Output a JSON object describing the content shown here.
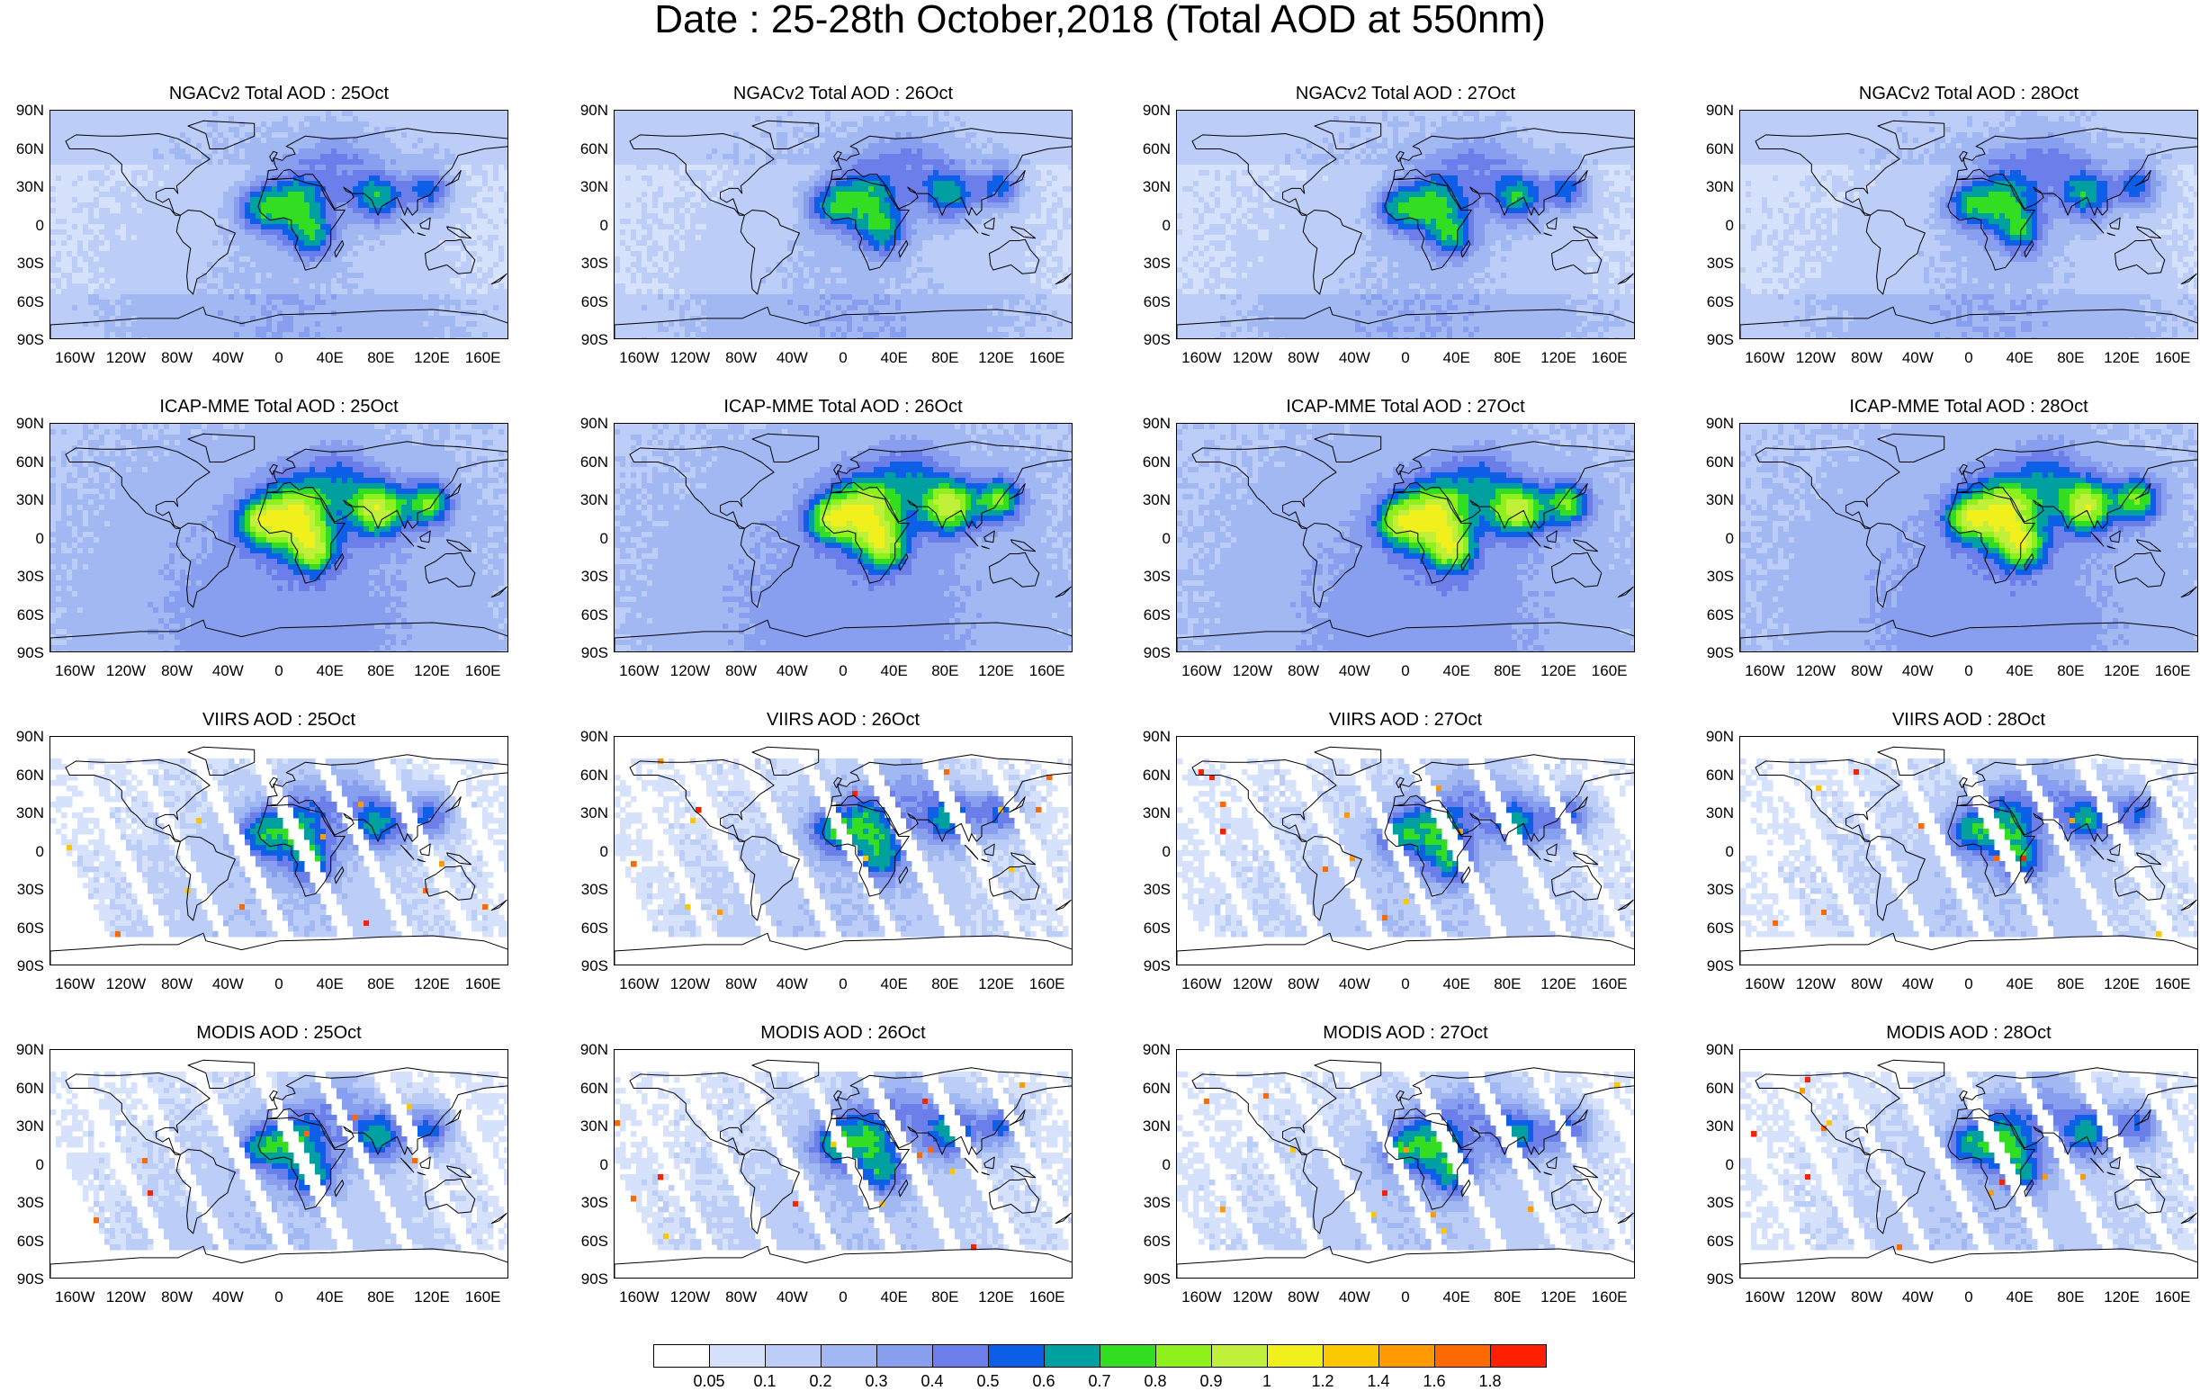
{
  "title": "Date : 25-28th October,2018 (Total AOD at 550nm)",
  "lat_ticks": [
    "90N",
    "60N",
    "30N",
    "0",
    "30S",
    "60S",
    "90S"
  ],
  "lon_ticks": [
    "160W",
    "120W",
    "80W",
    "40W",
    "0",
    "40E",
    "80E",
    "120E",
    "160E"
  ],
  "rows": [
    {
      "product": "NGACv2",
      "titles": [
        "NGACv2 Total AOD : 25Oct",
        "NGACv2 Total AOD : 26Oct",
        "NGACv2 Total AOD : 27Oct",
        "NGACv2 Total AOD : 28Oct"
      ]
    },
    {
      "product": "ICAP-MME",
      "titles": [
        "ICAP-MME Total AOD : 25Oct",
        "ICAP-MME Total AOD : 26Oct",
        "ICAP-MME Total AOD : 27Oct",
        "ICAP-MME Total AOD : 28Oct"
      ]
    },
    {
      "product": "VIIRS",
      "titles": [
        "VIIRS AOD : 25Oct",
        "VIIRS AOD : 26Oct",
        "VIIRS AOD : 27Oct",
        "VIIRS AOD : 28Oct"
      ]
    },
    {
      "product": "MODIS",
      "titles": [
        "MODIS AOD : 25Oct",
        "MODIS AOD : 26Oct",
        "MODIS AOD : 27Oct",
        "MODIS AOD : 28Oct"
      ]
    }
  ],
  "colorbar": {
    "labels": [
      "0.05",
      "0.1",
      "0.2",
      "0.3",
      "0.4",
      "0.5",
      "0.6",
      "0.7",
      "0.8",
      "0.9",
      "1",
      "1.2",
      "1.4",
      "1.6",
      "1.8"
    ],
    "colors": [
      "#ffffff",
      "#d6e1fb",
      "#bccdf7",
      "#a2b8f3",
      "#889fef",
      "#6b7ee9",
      "#0d5fe8",
      "#00a0a0",
      "#33dd22",
      "#8ef01c",
      "#c0f03a",
      "#f2f01c",
      "#fbc800",
      "#ff9a00",
      "#ff6a00",
      "#ff2000"
    ]
  }
}
